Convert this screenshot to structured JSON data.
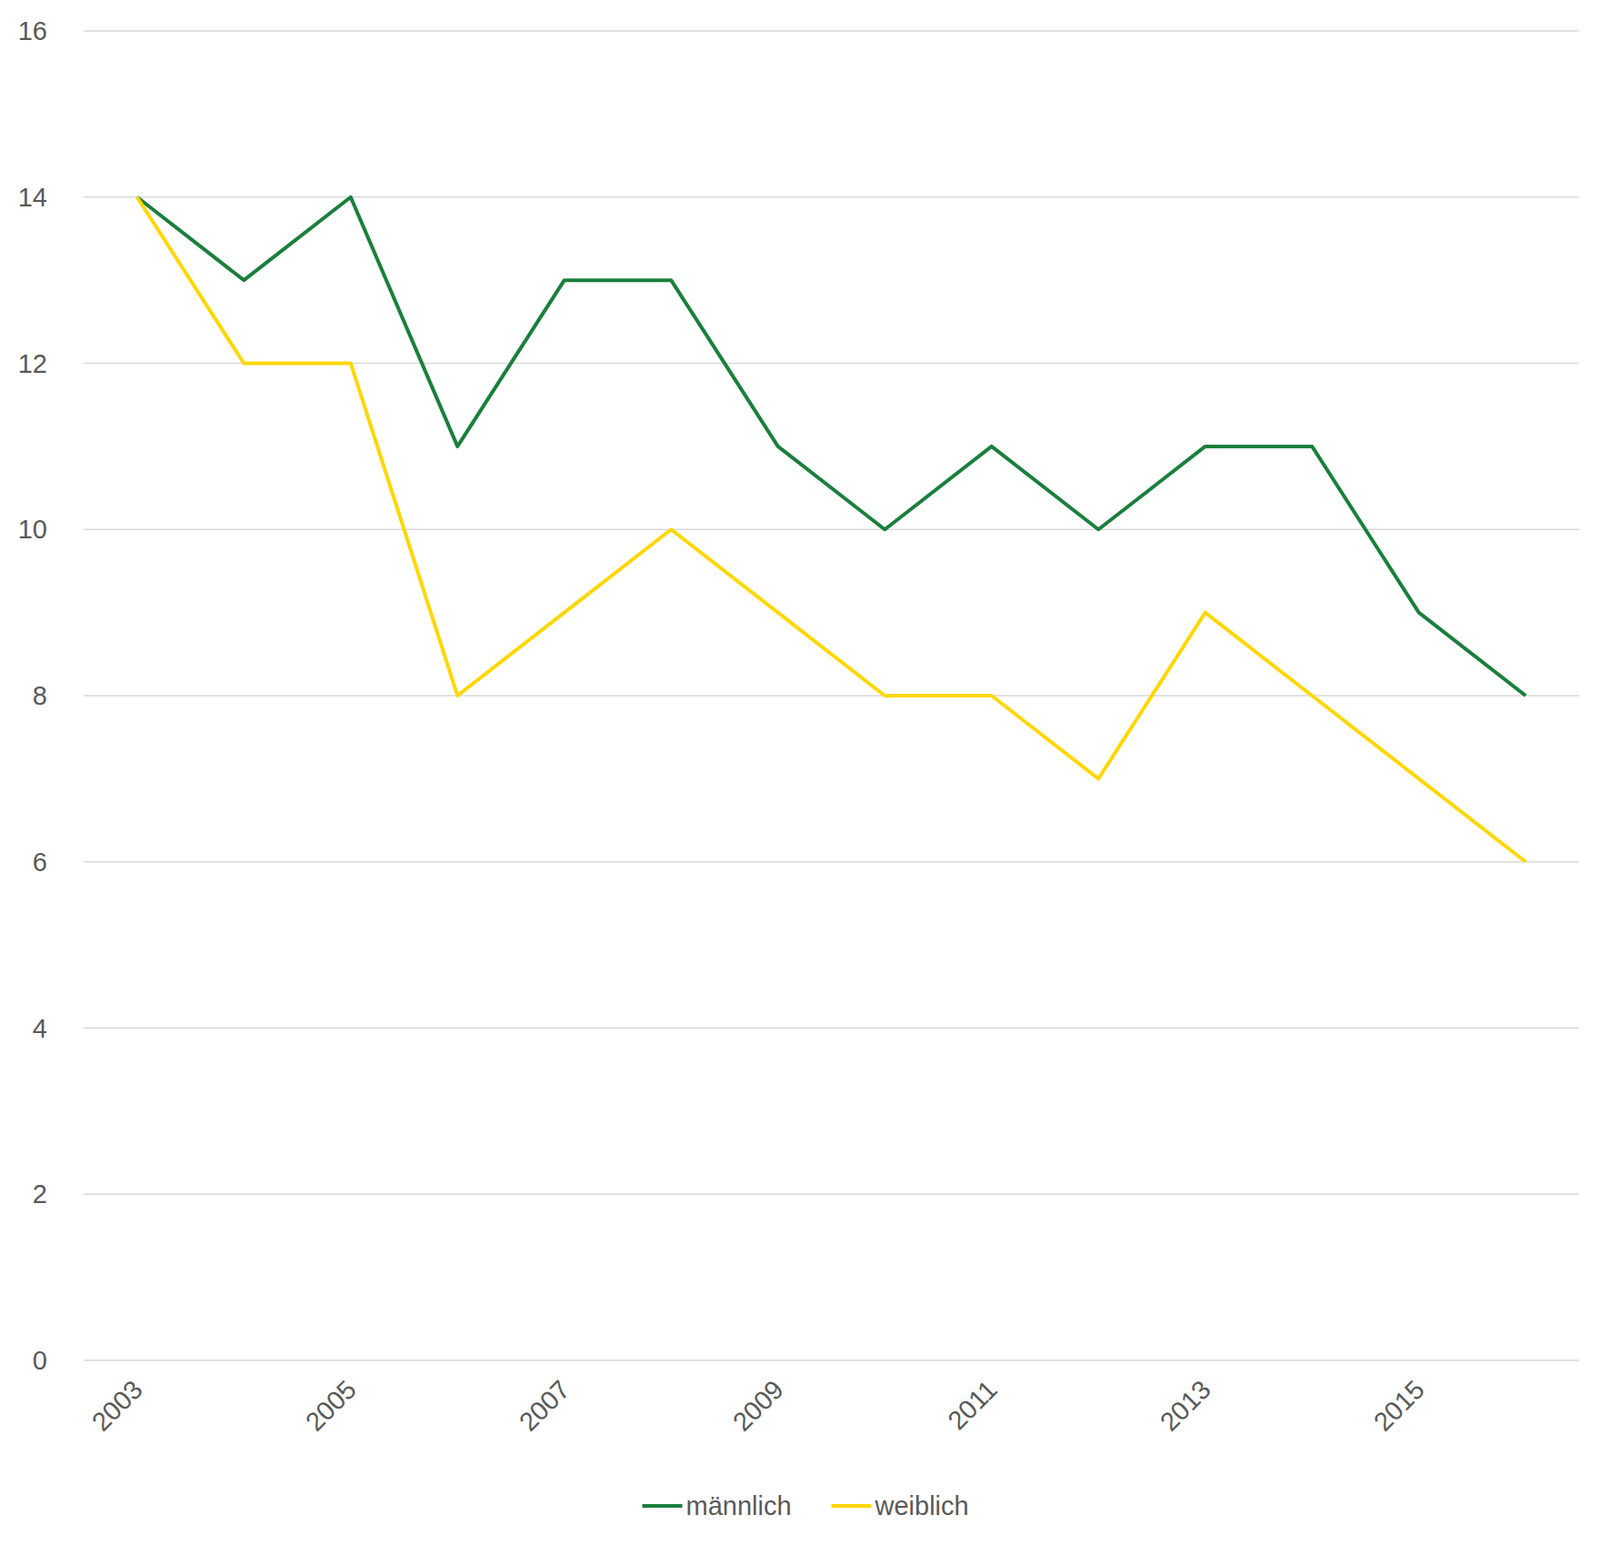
{
  "chart_data": {
    "type": "line",
    "categories": [
      "2003",
      null,
      "2005",
      null,
      "2007",
      null,
      "2009",
      null,
      "2011",
      null,
      "2013",
      null,
      "2015",
      null
    ],
    "series": [
      {
        "name": "männlich",
        "color": "#1a7f3c",
        "values": [
          14,
          13,
          14,
          11,
          13,
          13,
          11,
          10,
          11,
          10,
          11,
          11,
          9,
          8
        ]
      },
      {
        "name": "weiblich",
        "color": "#ffd700",
        "values": [
          14,
          12,
          12,
          8,
          9,
          10,
          9,
          8,
          8,
          7,
          9,
          8,
          7,
          6
        ]
      }
    ],
    "ylim": [
      0,
      16
    ],
    "yticks": [
      0,
      2,
      4,
      6,
      8,
      10,
      12,
      14,
      16
    ],
    "grid": true,
    "legend": "bottom"
  }
}
